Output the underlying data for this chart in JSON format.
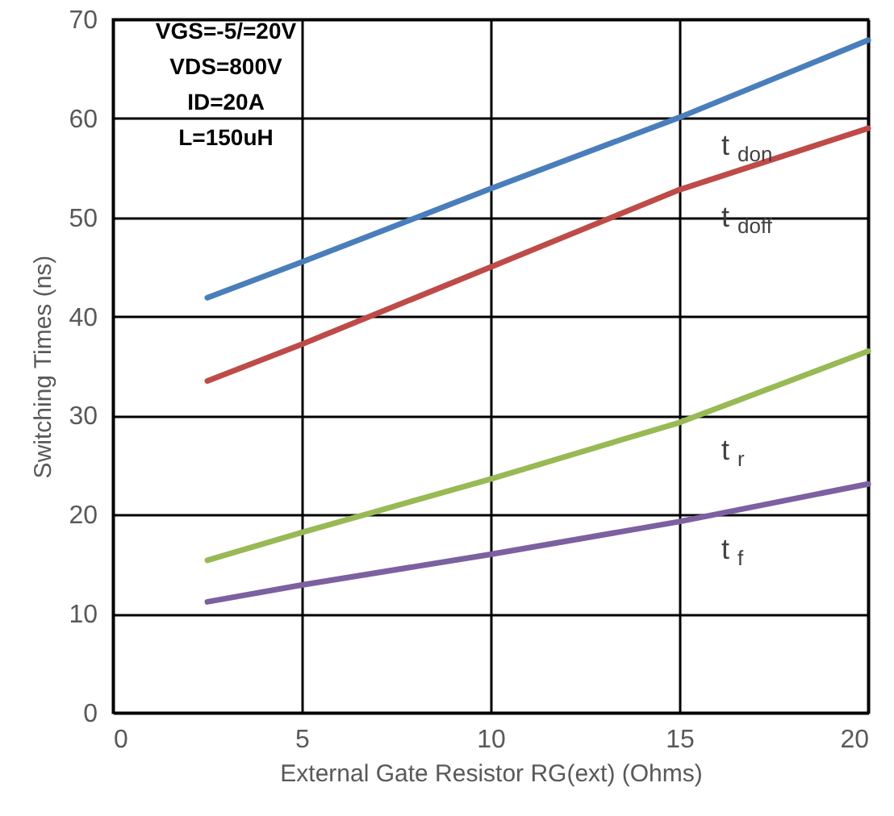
{
  "chart_data": {
    "type": "line",
    "xlabel": "External Gate Resistor RG(ext) (Ohms)",
    "ylabel": "Switching Times (ns)",
    "x": [
      2.5,
      5,
      10,
      15,
      20
    ],
    "series": [
      {
        "name": "t$_{don}$",
        "color": "#4a7ebb",
        "values": [
          41.9,
          45.5,
          52.9,
          60.1,
          67.9
        ]
      },
      {
        "name": "t$_{doff}$",
        "color": "#be4b48",
        "values": [
          33.5,
          37.2,
          45,
          52.8,
          59
        ]
      },
      {
        "name": "t$_{r}$",
        "color": "#98b954",
        "values": [
          15.4,
          18.2,
          23.6,
          29.3,
          36.5
        ]
      },
      {
        "name": "t$_{f}$",
        "color": "#7d60a0",
        "values": [
          11.2,
          12.9,
          16,
          19.3,
          23.1
        ]
      }
    ],
    "xlim": [
      0,
      20
    ],
    "xticks": [
      0,
      5,
      10,
      15,
      20
    ],
    "ylim": [
      0,
      70
    ],
    "yticks": [
      0,
      10,
      20,
      30,
      40,
      50,
      60,
      70
    ],
    "grid": true,
    "annotations": [
      "VGS=-5/=20V",
      "VDS=800V",
      "ID=20A",
      "L=150uH"
    ]
  }
}
